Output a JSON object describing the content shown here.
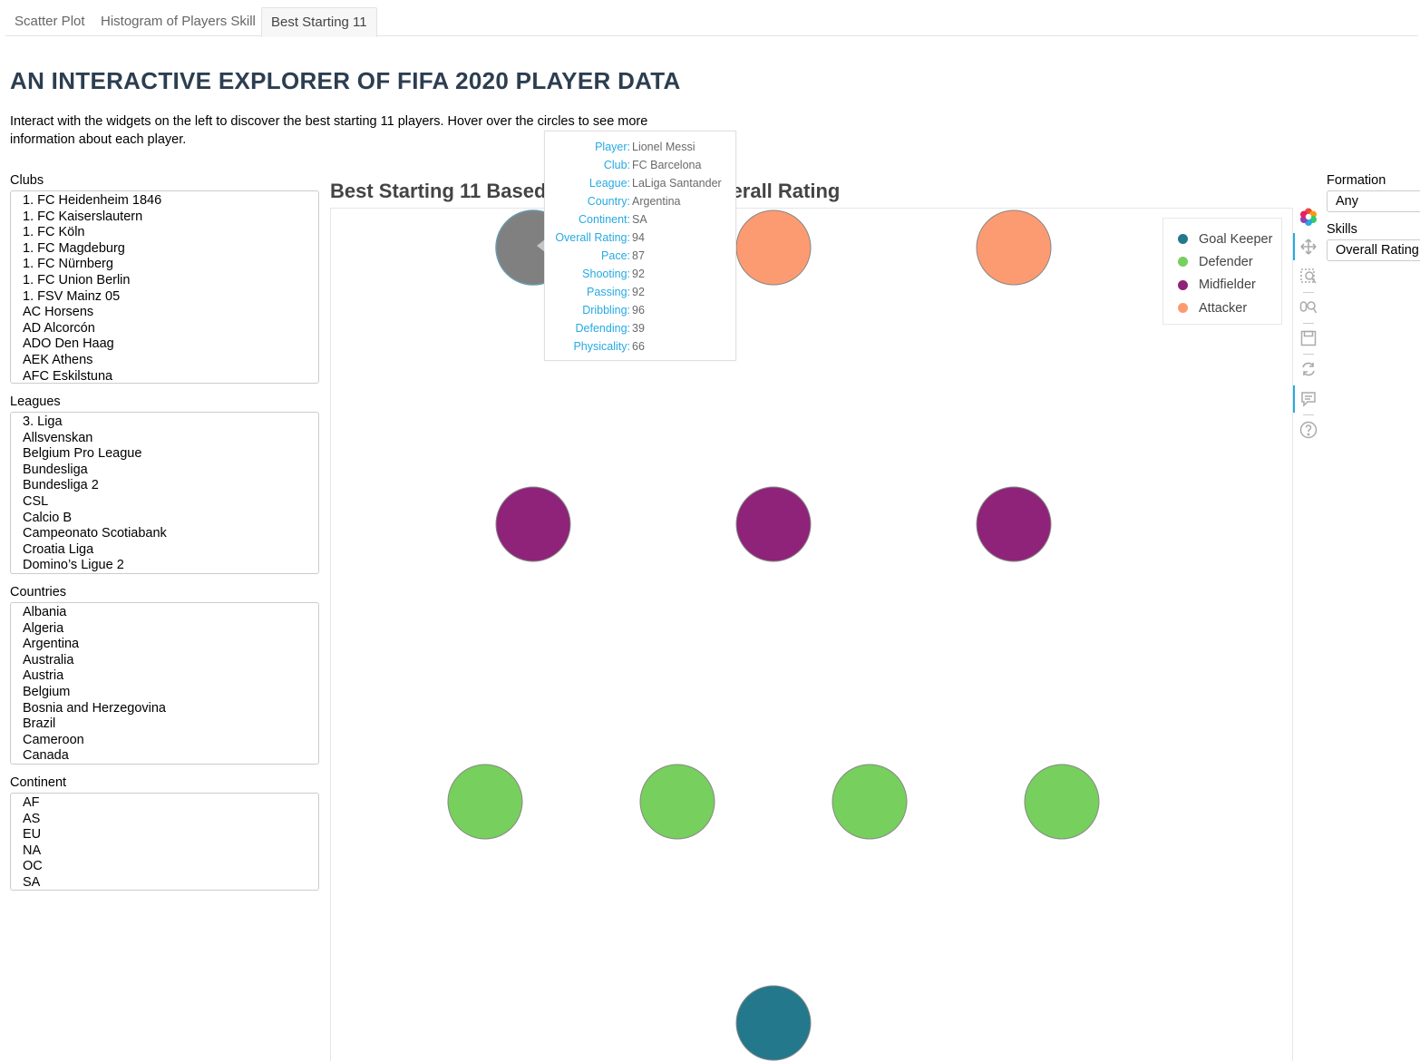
{
  "tabs": [
    {
      "label": "Scatter Plot"
    },
    {
      "label": "Histogram of Players Skill"
    },
    {
      "label": "Best Starting 11"
    }
  ],
  "header": {
    "title": "AN INTERACTIVE EXPLORER OF FIFA 2020 PLAYER DATA",
    "intro": "Interact with the widgets on the left to discover the best starting 11 players. Hover over the circles to see more information about each player."
  },
  "filters": {
    "clubs": {
      "label": "Clubs",
      "options": [
        "1. FC Heidenheim 1846",
        "1. FC Kaiserslautern",
        "1. FC Köln",
        "1. FC Magdeburg",
        "1. FC Nürnberg",
        "1. FC Union Berlin",
        "1. FSV Mainz 05",
        "AC Horsens",
        "AD Alcorcón",
        "ADO Den Haag",
        "AEK Athens",
        "AFC Eskilstuna"
      ]
    },
    "leagues": {
      "label": "Leagues",
      "options": [
        "3. Liga",
        "Allsvenskan",
        "Belgium Pro League",
        "Bundesliga",
        "Bundesliga 2",
        "CSL",
        "Calcio B",
        "Campeonato Scotiabank",
        "Croatia Liga",
        "Domino’s Ligue 2"
      ]
    },
    "countries": {
      "label": "Countries",
      "options": [
        "Albania",
        "Algeria",
        "Argentina",
        "Australia",
        "Austria",
        "Belgium",
        "Bosnia and Herzegovina",
        "Brazil",
        "Cameroon",
        "Canada"
      ]
    },
    "continent": {
      "label": "Continent",
      "options": [
        "AF",
        "AS",
        "EU",
        "NA",
        "OC",
        "SA"
      ]
    }
  },
  "controls": {
    "formation": {
      "label": "Formation",
      "value": "Any"
    },
    "skills": {
      "label": "Skills",
      "value": "Overall Rating"
    }
  },
  "plot": {
    "title": "Best Starting 11 Based on Formation & Overall Rating",
    "colors": {
      "goal_keeper": "#23788c",
      "defender": "#77cf5d",
      "midfielder": "#8e2379",
      "attacker": "#fc9b71",
      "hovered": "#808080"
    },
    "legend": [
      {
        "label": "Goal Keeper",
        "color": "#23788c"
      },
      {
        "label": "Defender",
        "color": "#77cf5d"
      },
      {
        "label": "Midfielder",
        "color": "#8e2379"
      },
      {
        "label": "Attacker",
        "color": "#fc9b71"
      }
    ],
    "toolbar": [
      "bokeh-logo-icon",
      "pan-icon",
      "box-zoom-icon",
      "wheel-zoom-icon",
      "save-icon",
      "reset-icon",
      "hover-icon",
      "help-icon"
    ]
  },
  "tooltip": [
    {
      "key": "Player:",
      "value": "Lionel Messi"
    },
    {
      "key": "Club:",
      "value": "FC Barcelona"
    },
    {
      "key": "League:",
      "value": "LaLiga Santander"
    },
    {
      "key": "Country:",
      "value": "Argentina"
    },
    {
      "key": "Continent:",
      "value": "SA"
    },
    {
      "key": "Overall Rating:",
      "value": "94"
    },
    {
      "key": "Pace:",
      "value": "87"
    },
    {
      "key": "Shooting:",
      "value": "92"
    },
    {
      "key": "Passing:",
      "value": "92"
    },
    {
      "key": "Dribbling:",
      "value": "96"
    },
    {
      "key": "Defending:",
      "value": "39"
    },
    {
      "key": "Physicality:",
      "value": "66"
    }
  ]
}
